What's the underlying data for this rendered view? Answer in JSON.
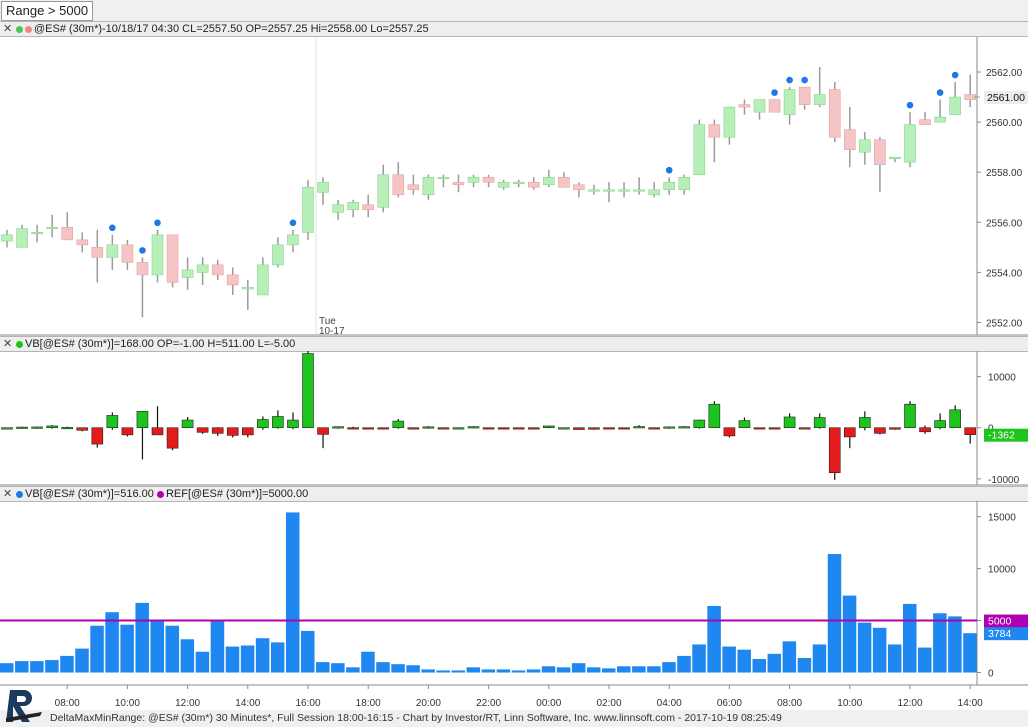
{
  "toolbar": {
    "range_label": "Range > 5000"
  },
  "panes": {
    "price": {
      "header": "@ES# (30m*)-10/18/17 04:30 CL=2557.50 OP=2557.25 Hi=2558.00 Lo=2557.25"
    },
    "delta": {
      "header": "VB[@ES# (30m*)]=168.00 OP=-1.00 H=511.00 L=-5.00"
    },
    "volume": {
      "header_a": "VB[@ES# (30m*)]=516.00",
      "header_b": "REF[@ES# (30m*)]=5000.00"
    }
  },
  "footer": {
    "text": "DeltaMaxMinRange: @ES# (30m*) 30 Minutes*, Full Session 18:00-16:15 - Chart by Investor/RT, Linn Software, Inc. www.linnsoft.com - 2017-10-19 08:25:49"
  },
  "colors": {
    "up_fill": "#b7efb8",
    "down_fill": "#f5c4c4",
    "wick": "#9a9a9a",
    "marker": "#1e78e6",
    "delta_up": "#1ec41e",
    "delta_down": "#e51b1b",
    "volume_bar": "#1e87f0",
    "ref_line": "#b000b0"
  },
  "chart_data": [
    {
      "type": "candlestick",
      "name": "@ES# (30m*)",
      "ylim": [
        2551.5,
        2563.4
      ],
      "y_ticks": [
        "2562.00",
        "2560.00",
        "2558.00",
        "2556.00",
        "2554.00",
        "2552.00"
      ],
      "last_value": "2561.00",
      "session_divider_label": [
        "Tue",
        "10-17"
      ],
      "bars": [
        {
          "o": 2555.25,
          "h": 2555.7,
          "l": 2555.0,
          "c": 2555.5
        },
        {
          "o": 2555.0,
          "h": 2555.9,
          "l": 2555.0,
          "c": 2555.75
        },
        {
          "o": 2555.6,
          "h": 2555.9,
          "l": 2555.2,
          "c": 2555.6
        },
        {
          "o": 2555.8,
          "h": 2556.3,
          "l": 2555.4,
          "c": 2555.8
        },
        {
          "o": 2555.8,
          "h": 2556.4,
          "l": 2555.4,
          "c": 2555.3
        },
        {
          "o": 2555.3,
          "h": 2555.6,
          "l": 2554.8,
          "c": 2555.1
        },
        {
          "o": 2555.0,
          "h": 2555.7,
          "l": 2553.6,
          "c": 2554.6
        },
        {
          "o": 2554.6,
          "h": 2555.5,
          "l": 2554.1,
          "c": 2555.1
        },
        {
          "o": 2555.1,
          "h": 2555.3,
          "l": 2554.1,
          "c": 2554.4
        },
        {
          "o": 2554.4,
          "h": 2554.6,
          "l": 2552.2,
          "c": 2553.9
        },
        {
          "o": 2553.9,
          "h": 2555.7,
          "l": 2553.6,
          "c": 2555.5
        },
        {
          "o": 2555.5,
          "h": 2555.5,
          "l": 2553.4,
          "c": 2553.6
        },
        {
          "o": 2553.8,
          "h": 2554.6,
          "l": 2553.3,
          "c": 2554.1
        },
        {
          "o": 2554.0,
          "h": 2554.6,
          "l": 2553.5,
          "c": 2554.3
        },
        {
          "o": 2554.3,
          "h": 2554.5,
          "l": 2553.7,
          "c": 2553.9
        },
        {
          "o": 2553.9,
          "h": 2554.2,
          "l": 2553.1,
          "c": 2553.5
        },
        {
          "o": 2553.4,
          "h": 2553.7,
          "l": 2552.5,
          "c": 2553.4
        },
        {
          "o": 2553.1,
          "h": 2554.6,
          "l": 2553.1,
          "c": 2554.3
        },
        {
          "o": 2554.3,
          "h": 2555.4,
          "l": 2554.2,
          "c": 2555.1
        },
        {
          "o": 2555.1,
          "h": 2555.7,
          "l": 2554.8,
          "c": 2555.5
        },
        {
          "o": 2555.6,
          "h": 2557.7,
          "l": 2555.3,
          "c": 2557.4
        },
        {
          "o": 2557.2,
          "h": 2557.8,
          "l": 2556.7,
          "c": 2557.6
        },
        {
          "o": 2556.4,
          "h": 2556.9,
          "l": 2556.1,
          "c": 2556.7
        },
        {
          "o": 2556.5,
          "h": 2556.9,
          "l": 2556.2,
          "c": 2556.8
        },
        {
          "o": 2556.7,
          "h": 2557.1,
          "l": 2556.2,
          "c": 2556.5
        },
        {
          "o": 2556.6,
          "h": 2558.3,
          "l": 2556.4,
          "c": 2557.9
        },
        {
          "o": 2557.9,
          "h": 2558.4,
          "l": 2557.0,
          "c": 2557.1
        },
        {
          "o": 2557.5,
          "h": 2557.9,
          "l": 2557.1,
          "c": 2557.3
        },
        {
          "o": 2557.1,
          "h": 2557.9,
          "l": 2556.9,
          "c": 2557.8
        },
        {
          "o": 2557.8,
          "h": 2557.9,
          "l": 2557.4,
          "c": 2557.8
        },
        {
          "o": 2557.6,
          "h": 2557.9,
          "l": 2557.2,
          "c": 2557.5
        },
        {
          "o": 2557.6,
          "h": 2557.9,
          "l": 2557.4,
          "c": 2557.8
        },
        {
          "o": 2557.8,
          "h": 2557.9,
          "l": 2557.4,
          "c": 2557.6
        },
        {
          "o": 2557.4,
          "h": 2557.7,
          "l": 2557.3,
          "c": 2557.6
        },
        {
          "o": 2557.6,
          "h": 2557.7,
          "l": 2557.4,
          "c": 2557.6
        },
        {
          "o": 2557.6,
          "h": 2557.8,
          "l": 2557.3,
          "c": 2557.4
        },
        {
          "o": 2557.5,
          "h": 2558.1,
          "l": 2557.4,
          "c": 2557.8
        },
        {
          "o": 2557.8,
          "h": 2558.0,
          "l": 2557.4,
          "c": 2557.4
        },
        {
          "o": 2557.5,
          "h": 2557.6,
          "l": 2557.0,
          "c": 2557.3
        },
        {
          "o": 2557.3,
          "h": 2557.5,
          "l": 2557.1,
          "c": 2557.3
        },
        {
          "o": 2557.3,
          "h": 2557.6,
          "l": 2556.8,
          "c": 2557.3
        },
        {
          "o": 2557.3,
          "h": 2557.6,
          "l": 2557.0,
          "c": 2557.3
        },
        {
          "o": 2557.3,
          "h": 2557.8,
          "l": 2557.1,
          "c": 2557.3
        },
        {
          "o": 2557.1,
          "h": 2557.6,
          "l": 2557.0,
          "c": 2557.3
        },
        {
          "o": 2557.3,
          "h": 2557.8,
          "l": 2557.1,
          "c": 2557.6
        },
        {
          "o": 2557.3,
          "h": 2557.9,
          "l": 2557.1,
          "c": 2557.8
        },
        {
          "o": 2557.9,
          "h": 2560.1,
          "l": 2557.9,
          "c": 2559.9
        },
        {
          "o": 2559.9,
          "h": 2560.1,
          "l": 2558.4,
          "c": 2559.4
        },
        {
          "o": 2559.4,
          "h": 2560.6,
          "l": 2559.1,
          "c": 2560.6
        },
        {
          "o": 2560.7,
          "h": 2560.9,
          "l": 2560.3,
          "c": 2560.6
        },
        {
          "o": 2560.4,
          "h": 2560.9,
          "l": 2560.1,
          "c": 2560.9
        },
        {
          "o": 2560.9,
          "h": 2560.9,
          "l": 2560.4,
          "c": 2560.4
        },
        {
          "o": 2560.3,
          "h": 2561.4,
          "l": 2559.9,
          "c": 2561.3
        },
        {
          "o": 2561.4,
          "h": 2561.4,
          "l": 2560.5,
          "c": 2560.7
        },
        {
          "o": 2560.7,
          "h": 2562.2,
          "l": 2560.6,
          "c": 2561.1
        },
        {
          "o": 2561.3,
          "h": 2561.6,
          "l": 2559.2,
          "c": 2559.4
        },
        {
          "o": 2559.7,
          "h": 2560.6,
          "l": 2558.2,
          "c": 2558.9
        },
        {
          "o": 2558.8,
          "h": 2559.6,
          "l": 2558.3,
          "c": 2559.3
        },
        {
          "o": 2559.3,
          "h": 2559.4,
          "l": 2557.2,
          "c": 2558.3
        },
        {
          "o": 2558.6,
          "h": 2558.6,
          "l": 2558.4,
          "c": 2558.6
        },
        {
          "o": 2558.4,
          "h": 2560.4,
          "l": 2558.2,
          "c": 2559.9
        },
        {
          "o": 2560.1,
          "h": 2560.4,
          "l": 2559.9,
          "c": 2559.9
        },
        {
          "o": 2560.0,
          "h": 2560.9,
          "l": 2560.0,
          "c": 2560.2
        },
        {
          "o": 2560.3,
          "h": 2561.6,
          "l": 2560.3,
          "c": 2561.0
        },
        {
          "o": 2561.1,
          "h": 2561.9,
          "l": 2560.6,
          "c": 2560.9
        }
      ],
      "marker_bars": [
        7,
        10,
        9,
        19,
        44,
        51,
        53,
        60,
        62,
        63,
        52
      ]
    },
    {
      "type": "bar",
      "name": "VB[@ES# (30m*)]",
      "ylim": [
        -11200,
        15000
      ],
      "y_ticks": [
        10000,
        0,
        -10000
      ],
      "last_value": "-1362",
      "values": [
        0,
        120,
        150,
        350,
        60,
        -500,
        -3200,
        2400,
        -1400,
        3200,
        -1400,
        -4000,
        1500,
        -900,
        -1100,
        -1500,
        -1400,
        1600,
        2200,
        1500,
        14500,
        -1300,
        200,
        -100,
        -280,
        -250,
        1300,
        -200,
        180,
        -90,
        0,
        210,
        -90,
        -80,
        -120,
        -130,
        340,
        0,
        -350,
        -300,
        -130,
        -110,
        230,
        -170,
        170,
        210,
        1500,
        4600,
        -1600,
        1400,
        -160,
        -130,
        2100,
        -110,
        2000,
        -8800,
        -1800,
        2000,
        -1100,
        -300,
        4600,
        -800,
        1400,
        3500,
        -1362
      ],
      "wicks": [
        [
          0,
          0
        ],
        [
          0,
          200
        ],
        [
          -200,
          200
        ],
        [
          -200,
          500
        ],
        [
          -100,
          200
        ],
        [
          -700,
          0
        ],
        [
          -3900,
          0
        ],
        [
          -400,
          3000
        ],
        [
          -1700,
          0
        ],
        [
          -6200,
          600
        ],
        [
          -300,
          4200
        ],
        [
          -4400,
          0
        ],
        [
          0,
          2100
        ],
        [
          -1200,
          0
        ],
        [
          -1600,
          100
        ],
        [
          -1900,
          0
        ],
        [
          -1900,
          0
        ],
        [
          -400,
          2200
        ],
        [
          -200,
          3400
        ],
        [
          -300,
          3000
        ],
        [
          0,
          15000
        ],
        [
          -4000,
          0
        ],
        [
          -200,
          200
        ],
        [
          -200,
          200
        ],
        [
          -300,
          0
        ],
        [
          -300,
          0
        ],
        [
          -200,
          1700
        ],
        [
          -300,
          0
        ],
        [
          -200,
          300
        ],
        [
          -100,
          0
        ],
        [
          0,
          0
        ],
        [
          0,
          300
        ],
        [
          -100,
          0
        ],
        [
          -100,
          0
        ],
        [
          -100,
          0
        ],
        [
          -200,
          0
        ],
        [
          -100,
          400
        ],
        [
          0,
          0
        ],
        [
          -400,
          0
        ],
        [
          -400,
          0
        ],
        [
          -200,
          0
        ],
        [
          -300,
          0
        ],
        [
          0,
          500
        ],
        [
          -200,
          0
        ],
        [
          -200,
          200
        ],
        [
          0,
          300
        ],
        [
          -200,
          1600
        ],
        [
          0,
          5200
        ],
        [
          -1900,
          0
        ],
        [
          0,
          2000
        ],
        [
          -200,
          0
        ],
        [
          -200,
          0
        ],
        [
          0,
          2800
        ],
        [
          -200,
          0
        ],
        [
          -200,
          2800
        ],
        [
          -10200,
          0
        ],
        [
          -4000,
          0
        ],
        [
          -500,
          3200
        ],
        [
          -1300,
          0
        ],
        [
          -400,
          0
        ],
        [
          0,
          5200
        ],
        [
          -1200,
          400
        ],
        [
          -300,
          2800
        ],
        [
          0,
          4400
        ],
        [
          -3100,
          0
        ]
      ]
    },
    {
      "type": "bar",
      "name": "VB[@ES# (30m*)]",
      "ylim": [
        -1200,
        16500
      ],
      "y_ticks": [
        15000,
        10000,
        5000,
        0
      ],
      "last_value": "3784",
      "reference_line": {
        "name": "REF[@ES# (30m*)]",
        "value": 5000,
        "label": "5000"
      },
      "values": [
        900,
        1100,
        1100,
        1200,
        1600,
        2300,
        4500,
        5800,
        4600,
        6700,
        5100,
        4500,
        3200,
        2000,
        5000,
        2500,
        2600,
        3300,
        2900,
        15400,
        4000,
        1000,
        900,
        500,
        2000,
        1000,
        800,
        700,
        300,
        200,
        200,
        500,
        300,
        300,
        200,
        300,
        600,
        500,
        900,
        500,
        400,
        600,
        600,
        600,
        1000,
        1600,
        2700,
        6400,
        2500,
        2200,
        1300,
        1800,
        3000,
        1400,
        2700,
        11400,
        7400,
        4800,
        4300,
        2700,
        6600,
        2400,
        5700,
        5400,
        3784
      ],
      "x_ticks": [
        "08:00",
        "10:00",
        "12:00",
        "14:00",
        "16:00",
        "18:00",
        "20:00",
        "22:00",
        "00:00",
        "02:00",
        "04:00",
        "06:00",
        "08:00",
        "10:00",
        "12:00",
        "14:00"
      ]
    }
  ]
}
